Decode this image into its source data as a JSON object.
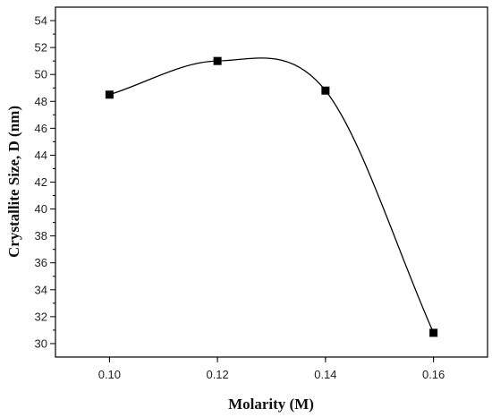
{
  "chart_data": {
    "type": "line",
    "xlabel": "Molarity (M)",
    "ylabel": "Crystallite Size, D (nm)",
    "xlim": [
      0.09,
      0.17
    ],
    "ylim": [
      29,
      55
    ],
    "xticks": [
      "0.10",
      "0.12",
      "0.14",
      "0.16"
    ],
    "yticks": [
      "30",
      "32",
      "34",
      "36",
      "38",
      "40",
      "42",
      "44",
      "46",
      "48",
      "50",
      "52",
      "54"
    ],
    "grid": false,
    "series": [
      {
        "x": [
          0.1,
          0.12,
          0.14,
          0.16
        ],
        "values": [
          48.5,
          51.0,
          48.8,
          30.8
        ],
        "marker": "square",
        "line": "smooth",
        "color": "#000000"
      }
    ]
  }
}
